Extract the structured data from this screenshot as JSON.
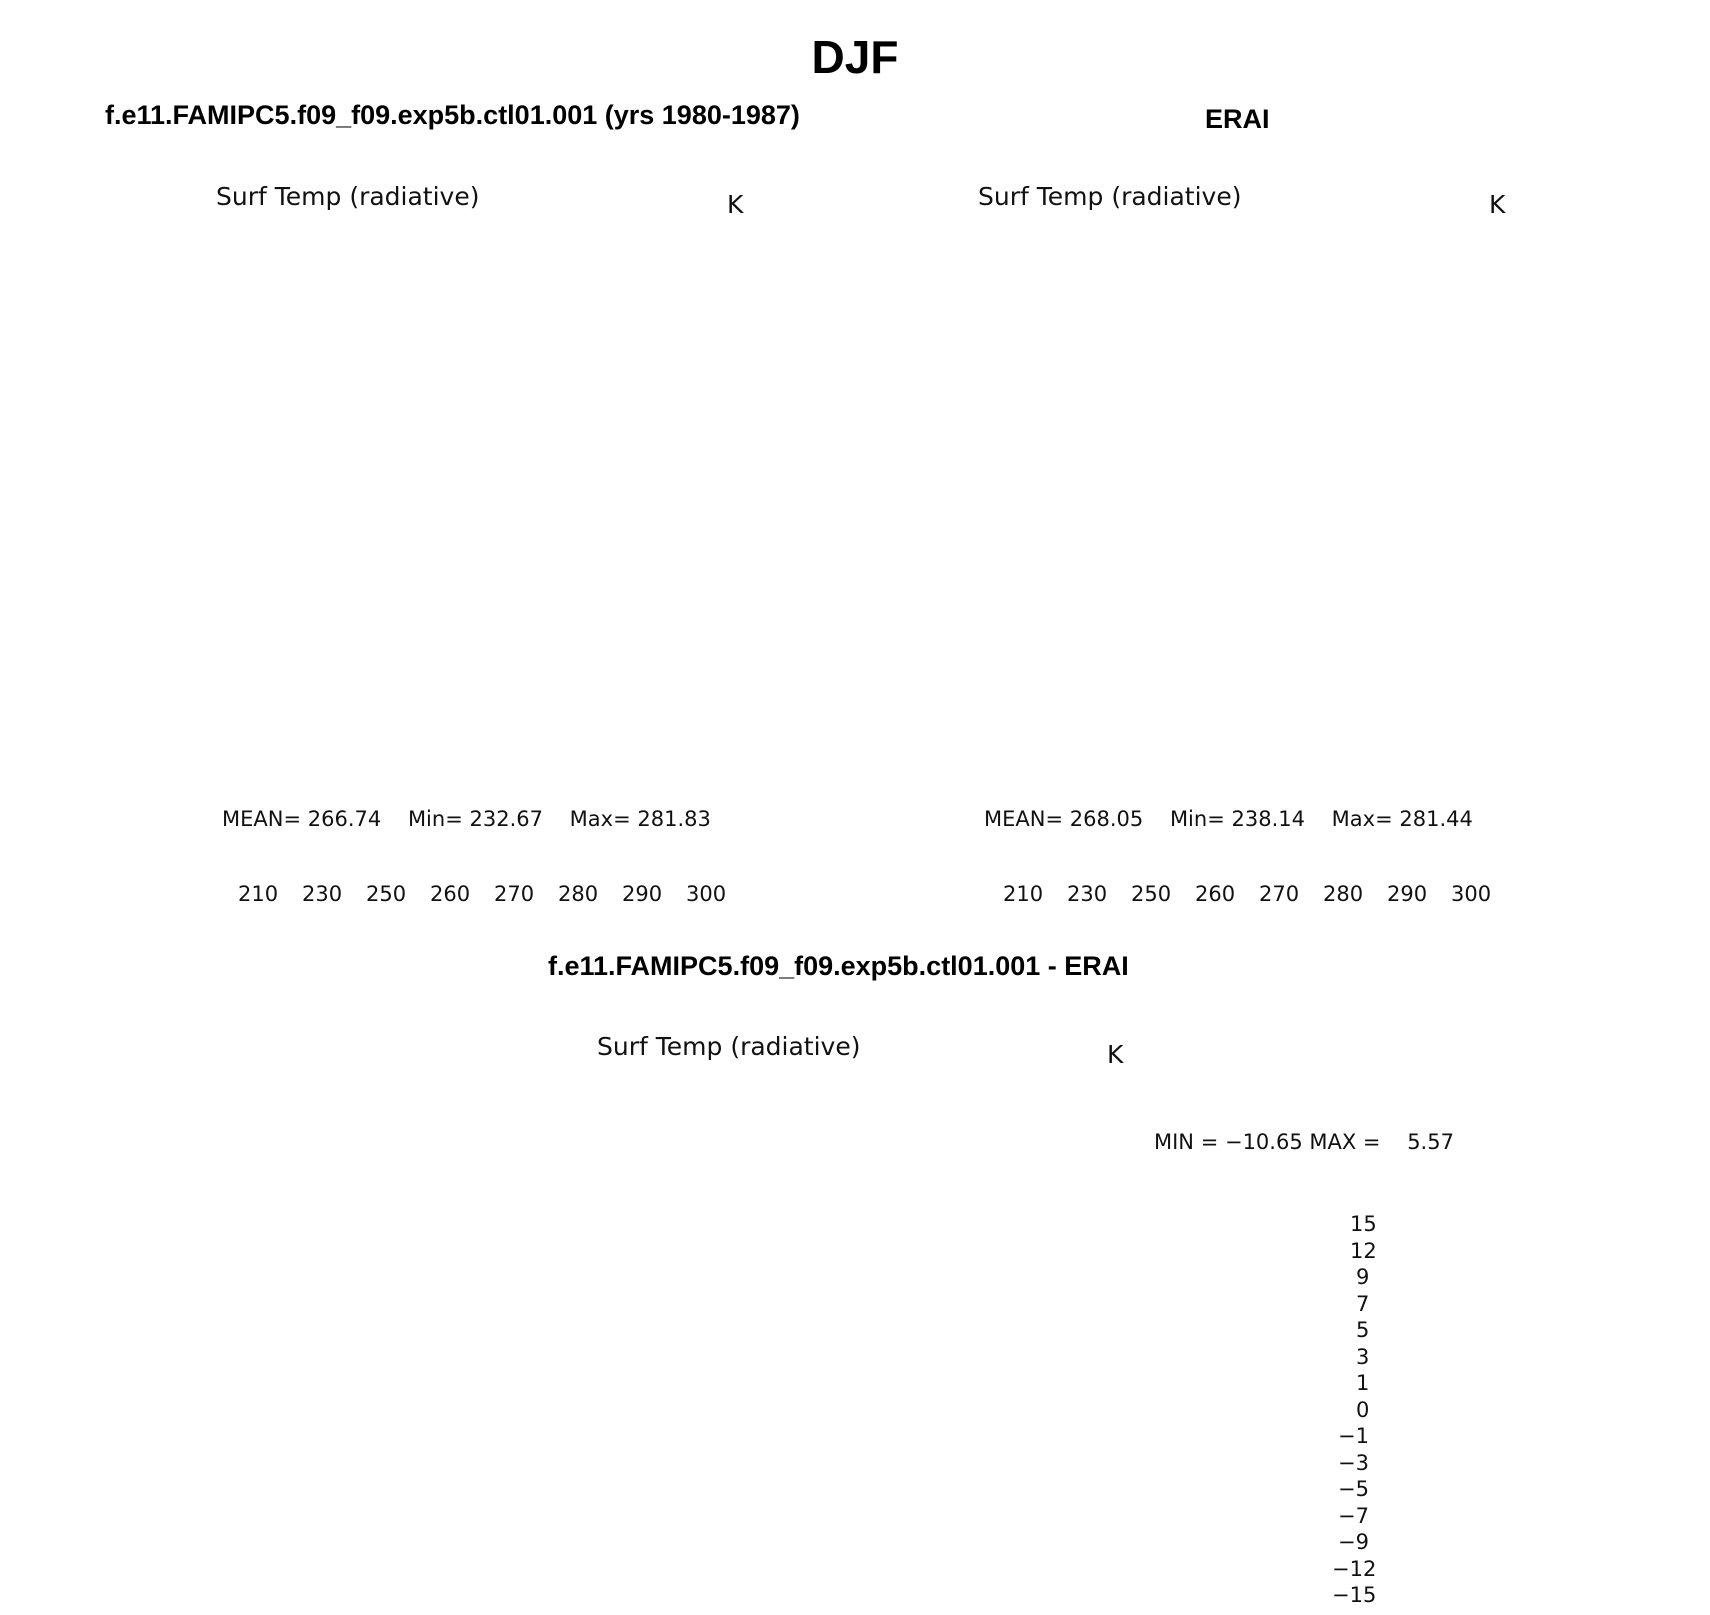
{
  "title": "DJF",
  "colors": {
    "abs_levels": [
      "#00008b",
      "#0022b8",
      "#0033d9",
      "#1a4ff0",
      "#3f6ef5",
      "#7a9df7",
      "#aec6f9",
      "#dcebfc",
      "#fee8d6",
      "#fdc7aa",
      "#fba37f",
      "#f87141",
      "#ef4a16",
      "#d42e08",
      "#b01a02",
      "#820000"
    ],
    "diff_levels": [
      "#00008b",
      "#0022b8",
      "#0033d9",
      "#1a4ff0",
      "#3f6ef5",
      "#7a9df7",
      "#aec6f9",
      "#dcebfc",
      "#fee8d6",
      "#fdc7aa",
      "#fba37f",
      "#f87141",
      "#ff4f1a",
      "#d42e08",
      "#b01a02",
      "#820000"
    ]
  },
  "panels": [
    {
      "header": "f.e11.FAMIPC5.f09_f09.exp5b.ctl01.001 (yrs 1980-1987)",
      "variable": "Surf Temp (radiative)",
      "units": "K",
      "mean_label": "MEAN=",
      "mean": "266.74",
      "min_label": "Min=",
      "min": "232.67",
      "max_label": "Max=",
      "max": "281.83",
      "colorbar_ticks": [
        "210",
        "230",
        "250",
        "260",
        "270",
        "280",
        "290",
        "300"
      ]
    },
    {
      "header": "ERAI",
      "variable": "Surf Temp (radiative)",
      "units": "K",
      "mean_label": "MEAN=",
      "mean": "268.05",
      "min_label": "Min=",
      "min": "238.14",
      "max_label": "Max=",
      "max": "281.44",
      "colorbar_ticks": [
        "210",
        "230",
        "250",
        "260",
        "270",
        "280",
        "290",
        "300"
      ]
    },
    {
      "header": "f.e11.FAMIPC5.f09_f09.exp5b.ctl01.001 - ERAI",
      "variable": "Surf Temp (radiative)",
      "units": "K",
      "minmax_text": "MIN = −10.65 MAX =    5.57",
      "colorbar_ticks": [
        "15",
        "12",
        "9",
        "7",
        "5",
        "3",
        "1",
        "0",
        "−1",
        "−3",
        "−5",
        "−7",
        "−9",
        "−12",
        "−15"
      ]
    }
  ]
}
